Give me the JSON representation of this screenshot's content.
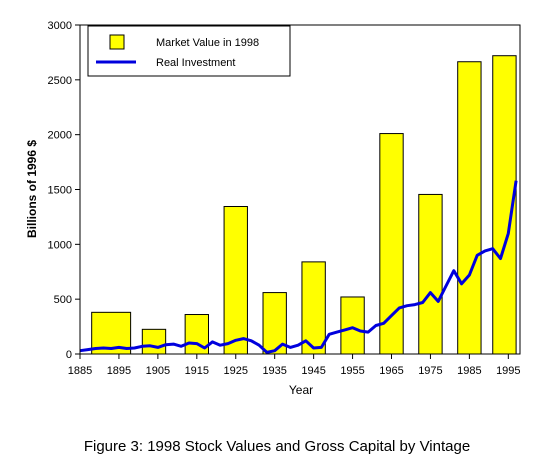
{
  "chart_data": {
    "type": "bar",
    "xlabel": "Year",
    "ylabel": "Billions of 1996 $",
    "xlim": [
      1885,
      1998
    ],
    "ylim": [
      0,
      3000
    ],
    "x_ticks": [
      1885,
      1895,
      1905,
      1915,
      1925,
      1935,
      1945,
      1955,
      1965,
      1975,
      1985,
      1995
    ],
    "y_ticks": [
      0,
      500,
      1000,
      1500,
      2000,
      2500,
      3000
    ],
    "grid": false,
    "legend_position": "top-left",
    "bar_color": "#ffff00",
    "line_color": "#0000dd",
    "bar_series": {
      "name": "Market Value in 1998",
      "bars": [
        {
          "start": 1888,
          "end": 1898,
          "value": 380
        },
        {
          "start": 1901,
          "end": 1907,
          "value": 225
        },
        {
          "start": 1912,
          "end": 1918,
          "value": 360
        },
        {
          "start": 1922,
          "end": 1928,
          "value": 1345
        },
        {
          "start": 1932,
          "end": 1938,
          "value": 560
        },
        {
          "start": 1942,
          "end": 1948,
          "value": 840
        },
        {
          "start": 1952,
          "end": 1958,
          "value": 520
        },
        {
          "start": 1962,
          "end": 1968,
          "value": 2010
        },
        {
          "start": 1972,
          "end": 1978,
          "value": 1455
        },
        {
          "start": 1982,
          "end": 1988,
          "value": 2665
        },
        {
          "start": 1991,
          "end": 1997,
          "value": 2720
        }
      ]
    },
    "line_series": {
      "name": "Real Investment",
      "x": [
        1885,
        1887,
        1889,
        1891,
        1893,
        1895,
        1897,
        1899,
        1901,
        1903,
        1905,
        1907,
        1909,
        1911,
        1913,
        1915,
        1917,
        1919,
        1921,
        1923,
        1925,
        1927,
        1929,
        1931,
        1933,
        1935,
        1937,
        1939,
        1941,
        1943,
        1945,
        1947,
        1949,
        1951,
        1953,
        1955,
        1957,
        1959,
        1961,
        1963,
        1965,
        1967,
        1969,
        1971,
        1973,
        1975,
        1977,
        1979,
        1981,
        1983,
        1985,
        1987,
        1989,
        1991,
        1993,
        1995,
        1997
      ],
      "y": [
        30,
        40,
        50,
        55,
        50,
        60,
        50,
        55,
        70,
        75,
        60,
        85,
        90,
        70,
        100,
        95,
        55,
        110,
        80,
        95,
        125,
        140,
        120,
        80,
        15,
        30,
        90,
        60,
        80,
        120,
        55,
        60,
        180,
        200,
        220,
        240,
        210,
        200,
        260,
        280,
        350,
        420,
        440,
        450,
        470,
        560,
        480,
        620,
        760,
        640,
        720,
        900,
        940,
        960,
        870,
        1100,
        1580
      ]
    },
    "caption": "Figure 3: 1998 Stock Values and Gross Capital by Vintage"
  }
}
